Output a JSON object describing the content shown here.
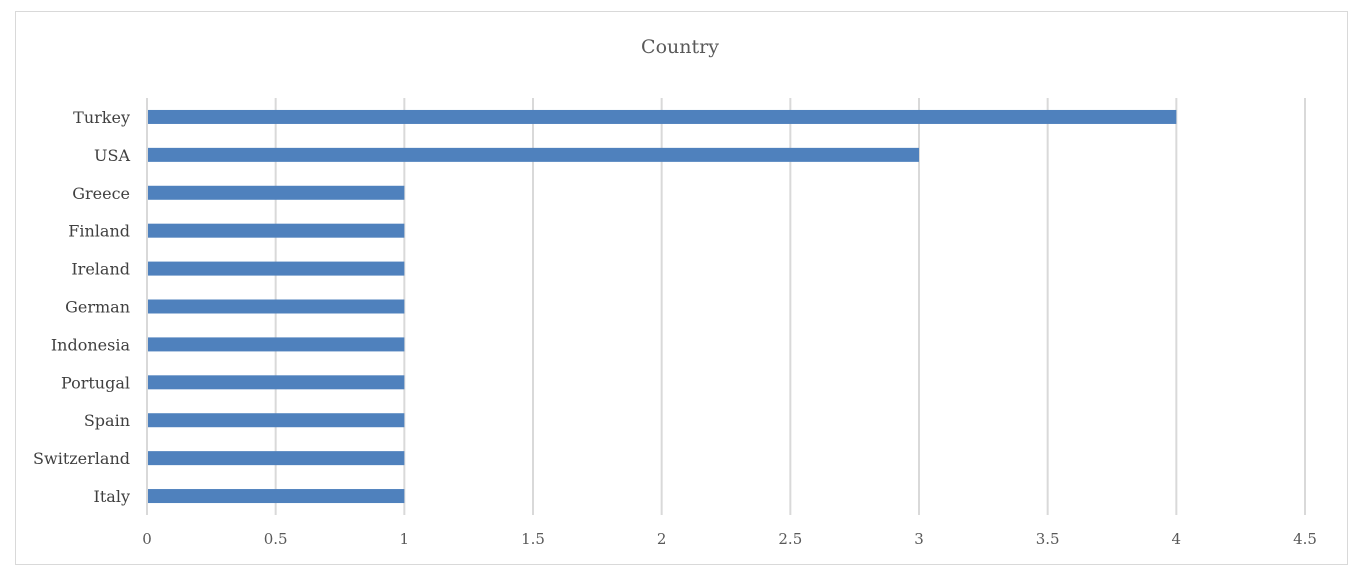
{
  "chart_data": {
    "type": "bar",
    "orientation": "horizontal",
    "title": "Country",
    "xlabel": "",
    "ylabel": "",
    "categories": [
      "Turkey",
      "USA",
      "Greece",
      "Finland",
      "Ireland",
      "German",
      "Indonesia",
      "Portugal",
      "Spain",
      "Switzerland",
      "Italy"
    ],
    "values": [
      4,
      3,
      1,
      1,
      1,
      1,
      1,
      1,
      1,
      1,
      1
    ],
    "xlim": [
      0,
      4.5
    ],
    "xticks": [
      "0",
      "0.5",
      "1",
      "1.5",
      "2",
      "2.5",
      "3",
      "3.5",
      "4",
      "4.5"
    ],
    "grid": "vertical",
    "legend": "none",
    "bar_color": "#4f81bd",
    "grid_color": "#d9d9d9"
  }
}
